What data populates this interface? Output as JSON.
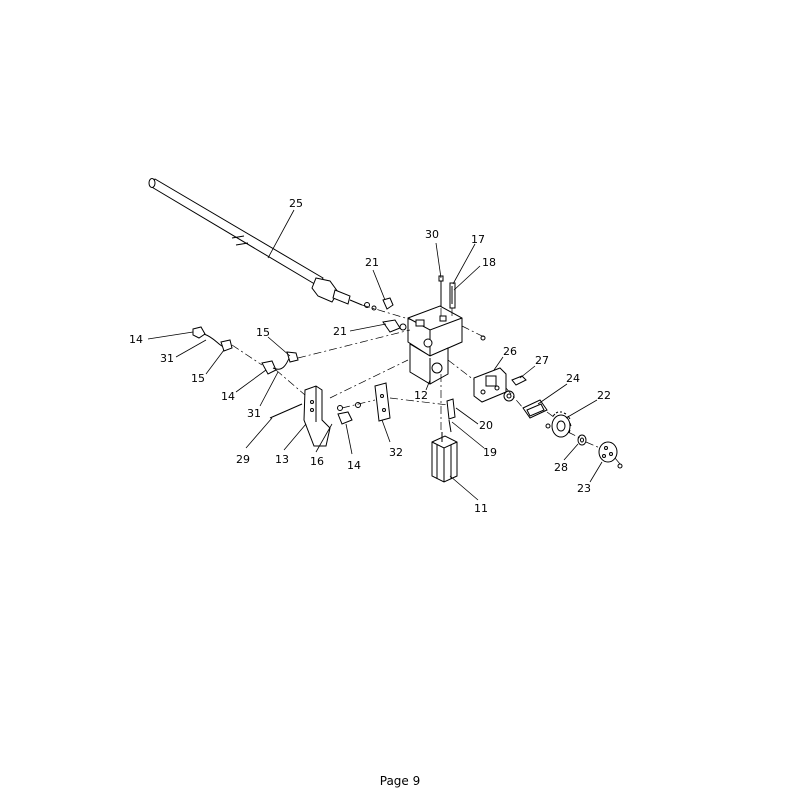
{
  "parts": [
    {
      "id": "p25",
      "label": "25"
    },
    {
      "id": "p30",
      "label": "30"
    },
    {
      "id": "p17",
      "label": "17"
    },
    {
      "id": "p18",
      "label": "18"
    },
    {
      "id": "p21a",
      "label": "21"
    },
    {
      "id": "p21b",
      "label": "21"
    },
    {
      "id": "p14a",
      "label": "14"
    },
    {
      "id": "p31a",
      "label": "31"
    },
    {
      "id": "p15a",
      "label": "15"
    },
    {
      "id": "p15b",
      "label": "15"
    },
    {
      "id": "p14b",
      "label": "14"
    },
    {
      "id": "p31b",
      "label": "31"
    },
    {
      "id": "p26",
      "label": "26"
    },
    {
      "id": "p27",
      "label": "27"
    },
    {
      "id": "p12",
      "label": "12"
    },
    {
      "id": "p24",
      "label": "24"
    },
    {
      "id": "p22",
      "label": "22"
    },
    {
      "id": "p20",
      "label": "20"
    },
    {
      "id": "p19",
      "label": "19"
    },
    {
      "id": "p32",
      "label": "32"
    },
    {
      "id": "p29",
      "label": "29"
    },
    {
      "id": "p13",
      "label": "13"
    },
    {
      "id": "p16",
      "label": "16"
    },
    {
      "id": "p14c",
      "label": "14"
    },
    {
      "id": "p28",
      "label": "28"
    },
    {
      "id": "p23",
      "label": "23"
    },
    {
      "id": "p11",
      "label": "11"
    }
  ],
  "footer": {
    "page": "Page 9"
  }
}
